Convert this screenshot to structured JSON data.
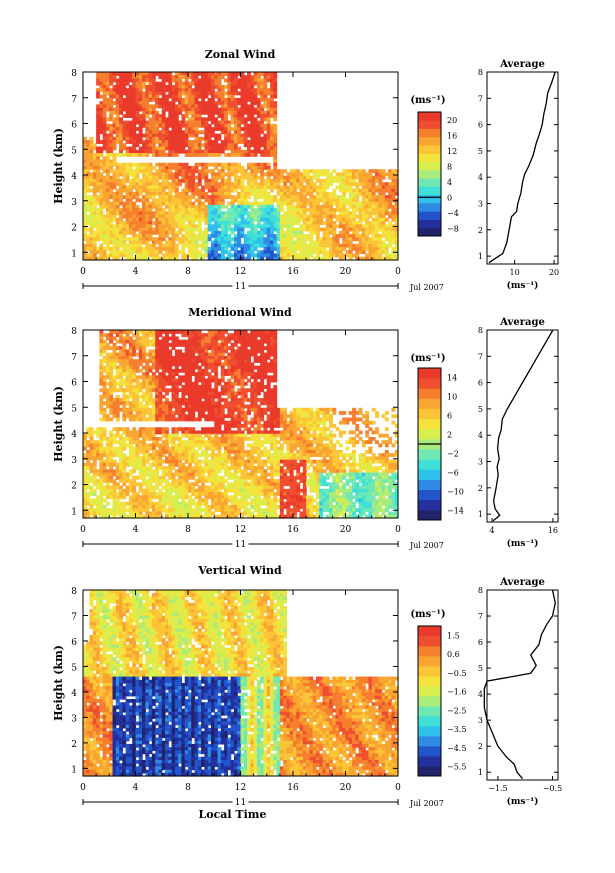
{
  "chart_data": [
    {
      "type": "heatmap",
      "title": "Zonal Wind",
      "xlabel": "",
      "ylabel": "Height (km)",
      "xlim": [
        0,
        24
      ],
      "ylim": [
        0.7,
        8
      ],
      "x_ticks": [
        "0",
        "4",
        "8",
        "12",
        "16",
        "20",
        "0"
      ],
      "y_ticks": [
        "1",
        "2",
        "3",
        "4",
        "5",
        "6",
        "7",
        "8"
      ],
      "date_marker": "11",
      "date_label": "Jul 2007",
      "units": "(ms⁻¹)",
      "colorbar_ticks": [
        "20",
        "16",
        "12",
        "8",
        "4",
        "0",
        "−4",
        "−8"
      ],
      "colorbar_range": [
        -10,
        22
      ],
      "average": {
        "title": "Average",
        "xlabel": "(ms⁻¹)",
        "x_ticks": [
          "10",
          "20"
        ],
        "xlim": [
          3,
          21
        ],
        "profile": [
          [
            3.5,
            0.75
          ],
          [
            5,
            0.9
          ],
          [
            7,
            1.1
          ],
          [
            8,
            1.5
          ],
          [
            8.6,
            2.0
          ],
          [
            9.2,
            2.5
          ],
          [
            10.5,
            2.7
          ],
          [
            10.8,
            3.0
          ],
          [
            11.6,
            3.4
          ],
          [
            12,
            3.8
          ],
          [
            12.5,
            4.1
          ],
          [
            13.5,
            4.4
          ],
          [
            14.6,
            4.8
          ],
          [
            15,
            5.0
          ],
          [
            15.5,
            5.3
          ],
          [
            16.2,
            5.6
          ],
          [
            17,
            6.0
          ],
          [
            17.4,
            6.4
          ],
          [
            18,
            6.8
          ],
          [
            18.4,
            7.2
          ],
          [
            19.4,
            7.6
          ],
          [
            20.3,
            8.0
          ]
        ]
      }
    },
    {
      "type": "heatmap",
      "title": "Meridional Wind",
      "xlabel": "",
      "ylabel": "Height (km)",
      "xlim": [
        0,
        24
      ],
      "ylim": [
        0.7,
        8
      ],
      "x_ticks": [
        "0",
        "4",
        "8",
        "12",
        "16",
        "20",
        "0"
      ],
      "y_ticks": [
        "1",
        "2",
        "3",
        "4",
        "5",
        "6",
        "7",
        "8"
      ],
      "date_marker": "11",
      "date_label": "Jul 2007",
      "units": "(ms⁻¹)",
      "colorbar_ticks": [
        "14",
        "10",
        "6",
        "2",
        "−2",
        "−6",
        "−10",
        "−14"
      ],
      "colorbar_range": [
        -16,
        16
      ],
      "average": {
        "title": "Average",
        "xlabel": "(ms⁻¹)",
        "x_ticks": [
          "4",
          "16"
        ],
        "xlim": [
          3,
          17
        ],
        "profile": [
          [
            4.2,
            0.75
          ],
          [
            5.5,
            0.95
          ],
          [
            4.6,
            1.2
          ],
          [
            4.3,
            1.5
          ],
          [
            4.8,
            2.0
          ],
          [
            5.2,
            2.5
          ],
          [
            5.0,
            2.8
          ],
          [
            5.4,
            3.1
          ],
          [
            5.1,
            3.5
          ],
          [
            5.3,
            3.9
          ],
          [
            5.8,
            4.2
          ],
          [
            6.0,
            4.6
          ],
          [
            7.0,
            5.0
          ],
          [
            8.5,
            5.5
          ],
          [
            10,
            6.0
          ],
          [
            11.5,
            6.5
          ],
          [
            13,
            7.0
          ],
          [
            14.5,
            7.5
          ],
          [
            16,
            8.0
          ]
        ]
      }
    },
    {
      "type": "heatmap",
      "title": "Vertical Wind",
      "xlabel": "Local Time",
      "ylabel": "Height (km)",
      "xlim": [
        0,
        24
      ],
      "ylim": [
        0.7,
        8
      ],
      "x_ticks": [
        "0",
        "4",
        "8",
        "12",
        "16",
        "20",
        "0"
      ],
      "y_ticks": [
        "1",
        "2",
        "3",
        "4",
        "5",
        "6",
        "7",
        "8"
      ],
      "date_marker": "11",
      "date_label": "Jul 2007",
      "units": "(ms⁻¹)",
      "colorbar_ticks": [
        "1.5",
        "0.6",
        "−0.5",
        "−1.6",
        "−2.5",
        "−3.5",
        "−4.5",
        "−5.5"
      ],
      "colorbar_range": [
        -6,
        2
      ],
      "average": {
        "title": "Average",
        "xlabel": "(ms⁻¹)",
        "x_ticks": [
          "−1.5",
          "−0.5"
        ],
        "xlim": [
          -1.7,
          -0.4
        ],
        "profile": [
          [
            -1.05,
            0.75
          ],
          [
            -1.15,
            1.0
          ],
          [
            -1.2,
            1.3
          ],
          [
            -1.35,
            1.6
          ],
          [
            -1.5,
            2.0
          ],
          [
            -1.6,
            2.5
          ],
          [
            -1.7,
            3.0
          ],
          [
            -1.75,
            3.5
          ],
          [
            -1.75,
            4.2
          ],
          [
            -1.7,
            4.5
          ],
          [
            -0.9,
            4.8
          ],
          [
            -0.8,
            5.1
          ],
          [
            -0.9,
            5.5
          ],
          [
            -0.75,
            5.9
          ],
          [
            -0.7,
            6.3
          ],
          [
            -0.6,
            6.7
          ],
          [
            -0.5,
            7.0
          ],
          [
            -0.45,
            7.5
          ],
          [
            -0.5,
            8.0
          ]
        ]
      }
    }
  ]
}
